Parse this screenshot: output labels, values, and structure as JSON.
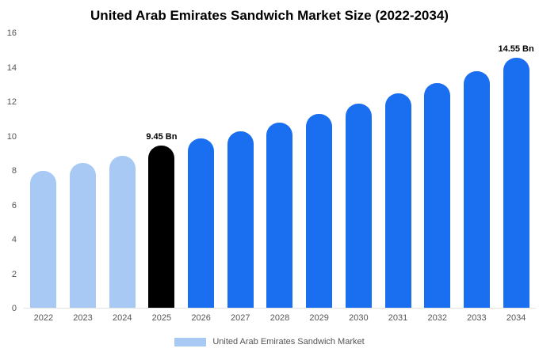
{
  "title": "United Arab Emirates Sandwich Market Size (2022-2034)",
  "colors": {
    "light_blue": "#a7c9f3",
    "blue": "#1a6ff0",
    "black": "#000000",
    "axis_text": "#555555"
  },
  "legend": {
    "label": "United Arab Emirates Sandwich Market",
    "swatch_color": "#a7c9f3"
  },
  "chart_data": {
    "type": "bar",
    "title": "United Arab Emirates Sandwich Market Size (2022-2034)",
    "categories": [
      "2022",
      "2023",
      "2024",
      "2025",
      "2026",
      "2027",
      "2028",
      "2029",
      "2030",
      "2031",
      "2032",
      "2033",
      "2034"
    ],
    "values": [
      8.0,
      8.45,
      8.85,
      9.45,
      9.85,
      10.3,
      10.8,
      11.3,
      11.9,
      12.5,
      13.1,
      13.8,
      14.55
    ],
    "bar_colors": [
      "#a7c9f3",
      "#a7c9f3",
      "#a7c9f3",
      "#000000",
      "#1a6ff0",
      "#1a6ff0",
      "#1a6ff0",
      "#1a6ff0",
      "#1a6ff0",
      "#1a6ff0",
      "#1a6ff0",
      "#1a6ff0",
      "#1a6ff0"
    ],
    "annotations": [
      {
        "index": 3,
        "text": "9.45 Bn"
      },
      {
        "index": 12,
        "text": "14.55 Bn"
      }
    ],
    "xlabel": "",
    "ylabel": "",
    "ylim": [
      0,
      16
    ],
    "yticks": [
      0,
      2,
      4,
      6,
      8,
      10,
      12,
      14,
      16
    ],
    "grid": false,
    "legend_position": "bottom",
    "legend_entries": [
      "United Arab Emirates Sandwich Market"
    ]
  }
}
